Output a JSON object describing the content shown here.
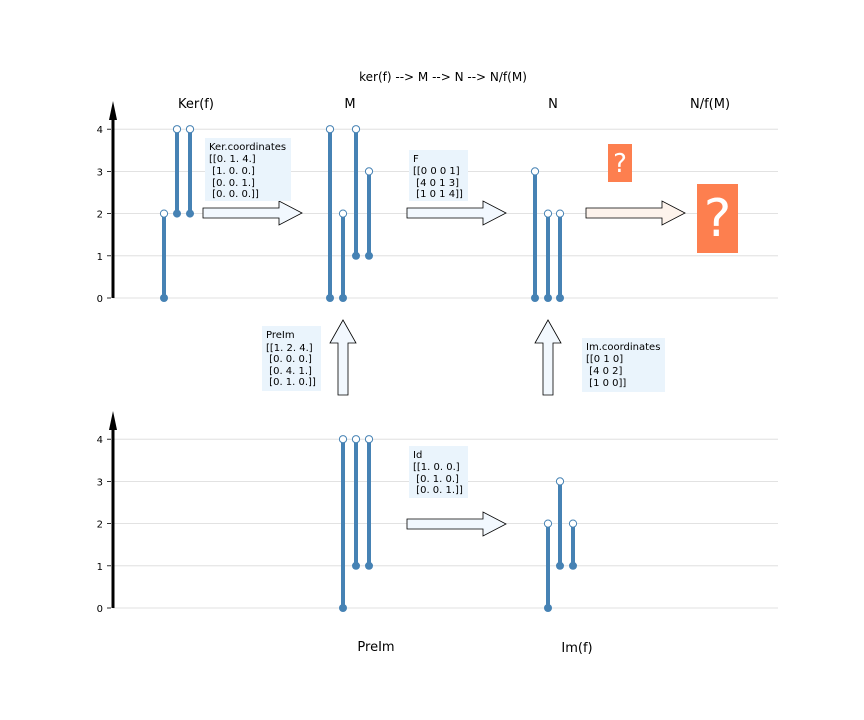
{
  "title": "ker(f) -->  M  --> N --> N/f(M)",
  "colors": {
    "bar": "#4682b4",
    "grid": "#d9d9d9",
    "box_bg": "#eaf4fc",
    "arrow_fill": "#f2f8fe",
    "arrow_fill_light": "#fdf3ec",
    "question": "#fd7f4f",
    "axis": "#000000",
    "text": "#000000"
  },
  "top_panel": {
    "yticks": [
      "0",
      "1",
      "2",
      "3",
      "4"
    ],
    "columns": [
      {
        "label": "Ker(f)",
        "bars": [
          {
            "start": 0,
            "end": 2
          },
          {
            "start": 2,
            "end": 4
          },
          {
            "start": 2,
            "end": 4
          }
        ]
      },
      {
        "label": "M",
        "bars": [
          {
            "start": 0,
            "end": 4
          },
          {
            "start": 0,
            "end": 2
          },
          {
            "start": 1,
            "end": 4
          },
          {
            "start": 1,
            "end": 3
          }
        ]
      },
      {
        "label": "N",
        "bars": [
          {
            "start": 0,
            "end": 3
          },
          {
            "start": 0,
            "end": 2
          },
          {
            "start": 0,
            "end": 2
          }
        ]
      },
      {
        "label": "N/f(M)",
        "bars": []
      }
    ]
  },
  "bottom_panel": {
    "yticks": [
      "0",
      "1",
      "2",
      "3",
      "4"
    ],
    "columns": [
      {
        "label": "PreIm",
        "bars": [
          {
            "start": 0,
            "end": 4
          },
          {
            "start": 1,
            "end": 4
          },
          {
            "start": 1,
            "end": 4
          }
        ]
      },
      {
        "label": "Im(f)",
        "bars": [
          {
            "start": 0,
            "end": 2
          },
          {
            "start": 1,
            "end": 3
          },
          {
            "start": 1,
            "end": 2
          }
        ]
      }
    ]
  },
  "matrix_boxes": {
    "ker_coords": {
      "title": "Ker.coordinates",
      "rows": [
        "[[0. 1. 4.]",
        " [1. 0. 0.]",
        " [0. 0. 1.]",
        " [0. 0. 0.]]"
      ]
    },
    "f": {
      "title": "F",
      "rows": [
        "[[0 0 0 1]",
        " [4 0 1 3]",
        " [1 0 1 4]]"
      ]
    },
    "preim": {
      "title": "PreIm",
      "rows": [
        "[[1. 2. 4.]",
        " [0. 0. 0.]",
        " [0. 4. 1.]",
        " [0. 1. 0.]]"
      ]
    },
    "im_coords": {
      "title": "Im.coordinates",
      "rows": [
        "[[0 1 0]",
        " [4 0 2]",
        " [1 0 0]]"
      ]
    },
    "id": {
      "title": "Id",
      "rows": [
        "[[1. 0. 0.]",
        " [0. 1. 0.]",
        " [0. 0. 1.]]"
      ]
    }
  },
  "question_marks": {
    "small": "?",
    "large": "?"
  }
}
